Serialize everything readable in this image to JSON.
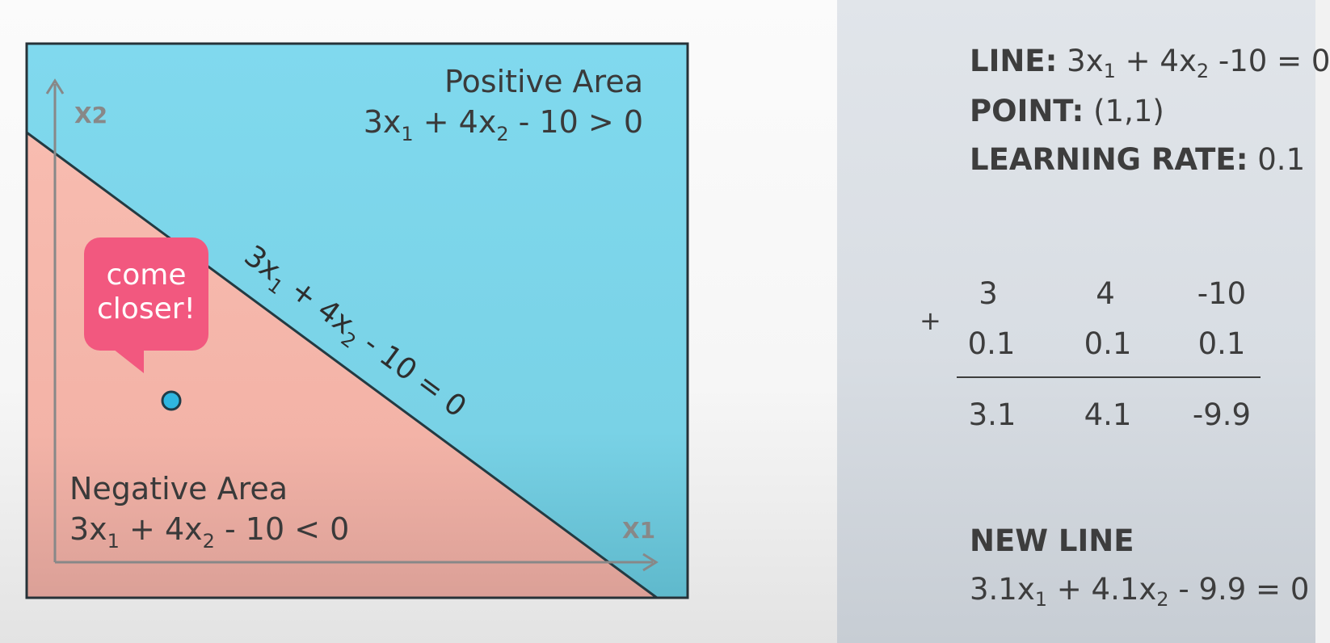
{
  "diagram": {
    "x_axis_label": "X1",
    "y_axis_label": "X2",
    "positive_area": {
      "title": "Positive Area",
      "equation": [
        "3x",
        "1",
        " + 4x",
        "2",
        " - 10 > 0"
      ]
    },
    "negative_area": {
      "title": "Negative Area",
      "equation": [
        "3x",
        "1",
        " + 4x",
        "2",
        " - 10 < 0"
      ]
    },
    "boundary_line": {
      "equation": [
        "3x",
        "1",
        " + 4x",
        "2",
        " - 10 = 0"
      ]
    },
    "speech_bubble": {
      "line1": "come",
      "line2": "closer!"
    },
    "colors": {
      "positive": "#80d8ec",
      "negative": "#f7b9ad",
      "point": "#2fb6e0",
      "bubble": "#f2587f",
      "line": "#233a42"
    }
  },
  "panel": {
    "line_label": "LINE:",
    "line_equation": [
      "3x",
      "1",
      " + 4x",
      "2",
      " -10 = 0"
    ],
    "point_label": "POINT:",
    "point_value": "(1,1)",
    "learning_rate_label": "LEARNING RATE:",
    "learning_rate_value": "0.1",
    "plus_sign": "+",
    "table": {
      "row1": [
        "3",
        "4",
        "-10"
      ],
      "row2": [
        "0.1",
        "0.1",
        "0.1"
      ],
      "result": [
        "3.1",
        "4.1",
        "-9.9"
      ]
    },
    "new_line_label": "NEW LINE",
    "new_line_equation": [
      "3.1x",
      "1",
      " + 4.1x",
      "2",
      " - 9.9 = 0"
    ]
  }
}
